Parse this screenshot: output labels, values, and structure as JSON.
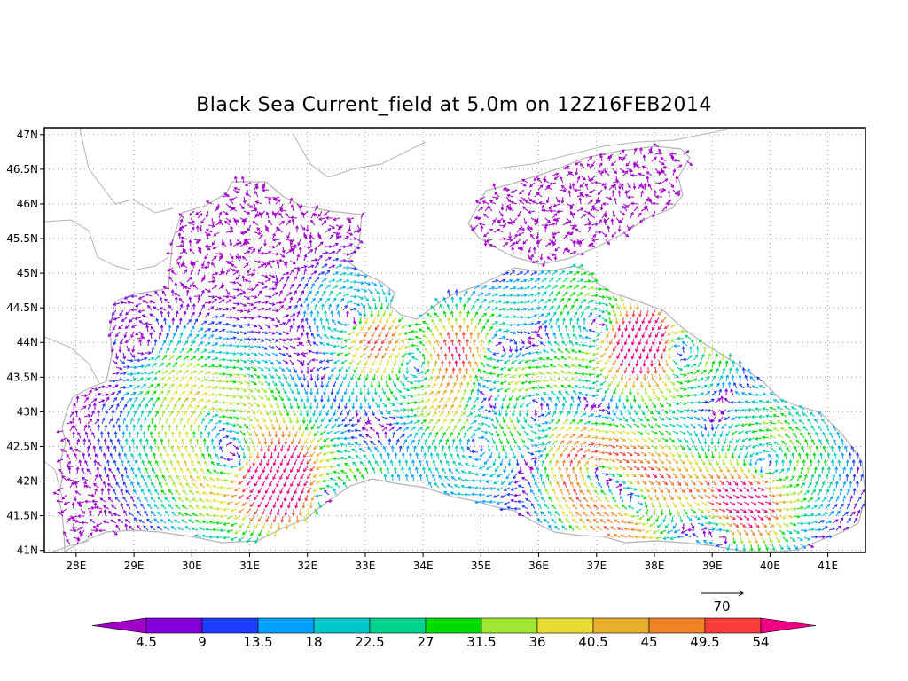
{
  "chart_data": {
    "type": "vector-field",
    "title": "Black Sea Current_field at 5.0m on 12Z16FEB2014",
    "x_ticks": [
      "28E",
      "29E",
      "30E",
      "31E",
      "32E",
      "33E",
      "34E",
      "35E",
      "36E",
      "37E",
      "38E",
      "39E",
      "40E",
      "41E"
    ],
    "y_ticks": [
      "41N",
      "41.5N",
      "42N",
      "42.5N",
      "43N",
      "43.5N",
      "44N",
      "44.5N",
      "45N",
      "45.5N",
      "46N",
      "46.5N",
      "47N"
    ],
    "xlim": [
      27.45,
      41.65
    ],
    "ylim": [
      40.97,
      47.1
    ],
    "grid": true,
    "reference_vector": {
      "value": "70"
    },
    "colorbar": {
      "levels": [
        "4.5",
        "9",
        "13.5",
        "18",
        "22.5",
        "27",
        "31.5",
        "36",
        "40.5",
        "45",
        "49.5",
        "54"
      ],
      "colors": [
        "#a000c8",
        "#8200dc",
        "#1e3cff",
        "#00a0ff",
        "#00c8c8",
        "#00d28c",
        "#00dc00",
        "#a0e632",
        "#e6dc32",
        "#e6af2d",
        "#f08228",
        "#fa3c3c",
        "#f00082"
      ]
    }
  }
}
